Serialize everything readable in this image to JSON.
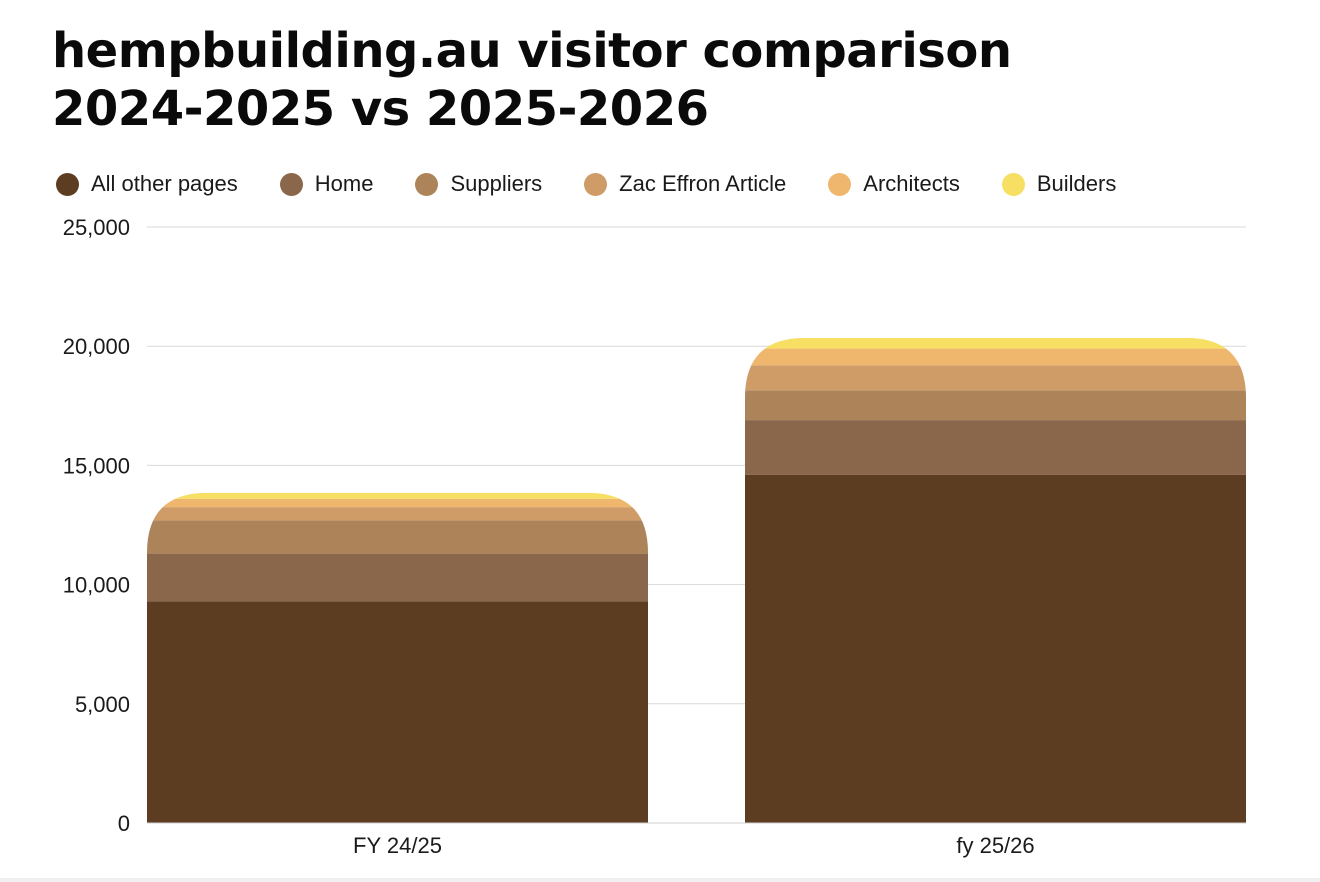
{
  "title": {
    "line1": "hempbuilding.au visitor comparison",
    "line2": "2024-2025 vs 2025-2026"
  },
  "chart_data": {
    "type": "bar",
    "stacked": true,
    "title": "hempbuilding.au visitor comparison 2024-2025 vs 2025-2026",
    "categories": [
      "FY 24/25",
      "fy 25/26"
    ],
    "series": [
      {
        "name": "All other pages",
        "color": "#5c3d21",
        "values": [
          9300,
          14600
        ]
      },
      {
        "name": "Home",
        "color": "#8a674b",
        "values": [
          2000,
          2300
        ]
      },
      {
        "name": "Suppliers",
        "color": "#ad8359",
        "values": [
          1400,
          1250
        ]
      },
      {
        "name": "Zac Effron Article",
        "color": "#cf9c67",
        "values": [
          550,
          1050
        ]
      },
      {
        "name": "Architects",
        "color": "#efb76e",
        "values": [
          350,
          700
        ]
      },
      {
        "name": "Builders",
        "color": "#f6df62",
        "values": [
          250,
          450
        ]
      }
    ],
    "ylim": [
      0,
      25000
    ],
    "yticks": [
      0,
      5000,
      10000,
      15000,
      20000,
      25000
    ],
    "ytick_labels": [
      "0",
      "5,000",
      "10,000",
      "15,000",
      "20,000",
      "25,000"
    ],
    "grid": true,
    "legend_position": "top-left",
    "xlabel": "",
    "ylabel": ""
  }
}
